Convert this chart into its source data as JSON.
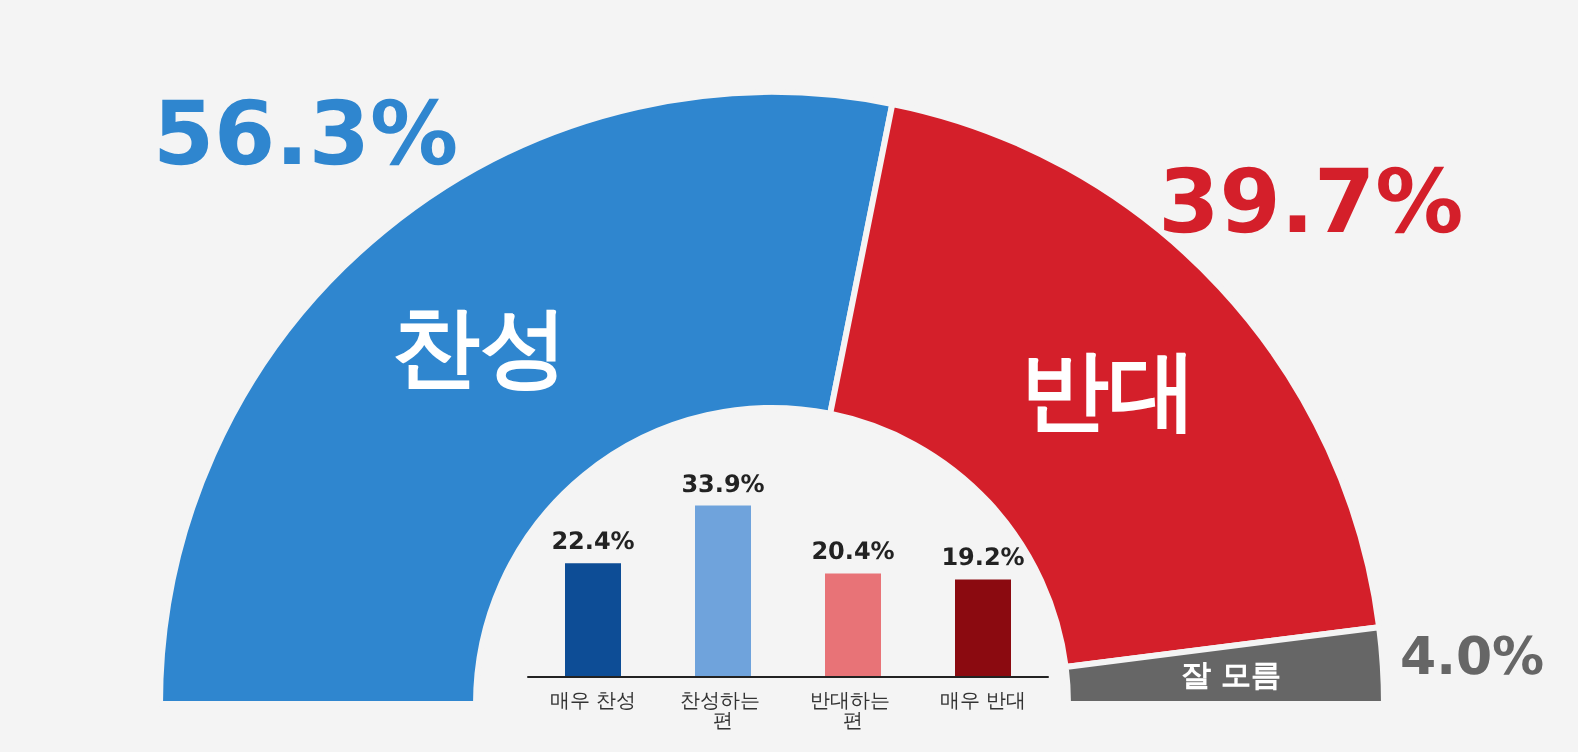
{
  "chart_data": [
    {
      "type": "donut",
      "categories": [
        "찬성",
        "반대",
        "잘 모름"
      ],
      "values": [
        56.3,
        39.7,
        4.0
      ],
      "colors": [
        "#2f86cf",
        "#d41f2a",
        "#666666"
      ],
      "value_labels": [
        "56.3%",
        "39.7%",
        "4.0%"
      ]
    },
    {
      "type": "bar",
      "categories": [
        "매우 찬성",
        "찬성하는 편",
        "반대하는 편",
        "매우 반대"
      ],
      "values": [
        22.4,
        33.9,
        20.4,
        19.2
      ],
      "colors": [
        "#0d4d96",
        "#6fa3dc",
        "#e87377",
        "#8b0a10"
      ],
      "value_labels": [
        "22.4%",
        "33.9%",
        "20.4%",
        "19.2%"
      ],
      "tick_labels": "x"
    }
  ]
}
